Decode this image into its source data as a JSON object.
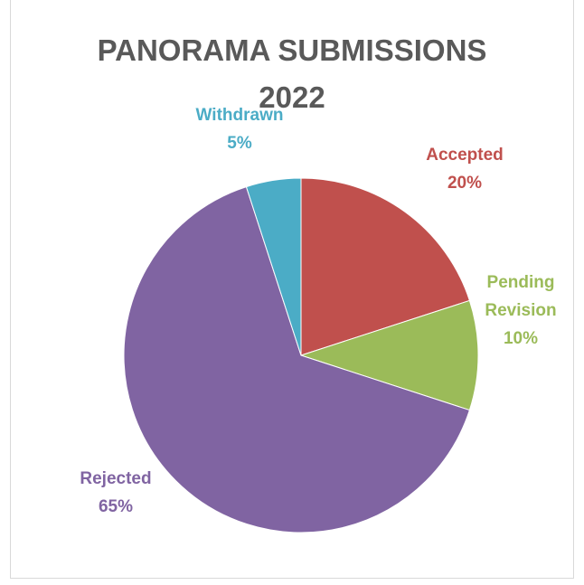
{
  "chart_data": {
    "type": "pie",
    "title_lines": [
      "PANORAMA SUBMISSIONS",
      "2022"
    ],
    "slices": [
      {
        "name": "Accepted",
        "name_lines": [
          "Accepted"
        ],
        "value": 20,
        "value_label": "20%",
        "color": "#c0504d"
      },
      {
        "name": "Pending Revision",
        "name_lines": [
          "Pending",
          "Revision"
        ],
        "value": 10,
        "value_label": "10%",
        "color": "#9bbb59"
      },
      {
        "name": "Rejected",
        "name_lines": [
          "Rejected"
        ],
        "value": 65,
        "value_label": "65%",
        "color": "#8064a2"
      },
      {
        "name": "Withdrawn",
        "name_lines": [
          "Withdrawn"
        ],
        "value": 5,
        "value_label": "5%",
        "color": "#4bacc6"
      }
    ],
    "start_angle": "12 o'clock",
    "direction": "clockwise",
    "legend": "none",
    "data_labels": "outside"
  },
  "title_color": "#595959",
  "border_color": "#d9d9d9"
}
